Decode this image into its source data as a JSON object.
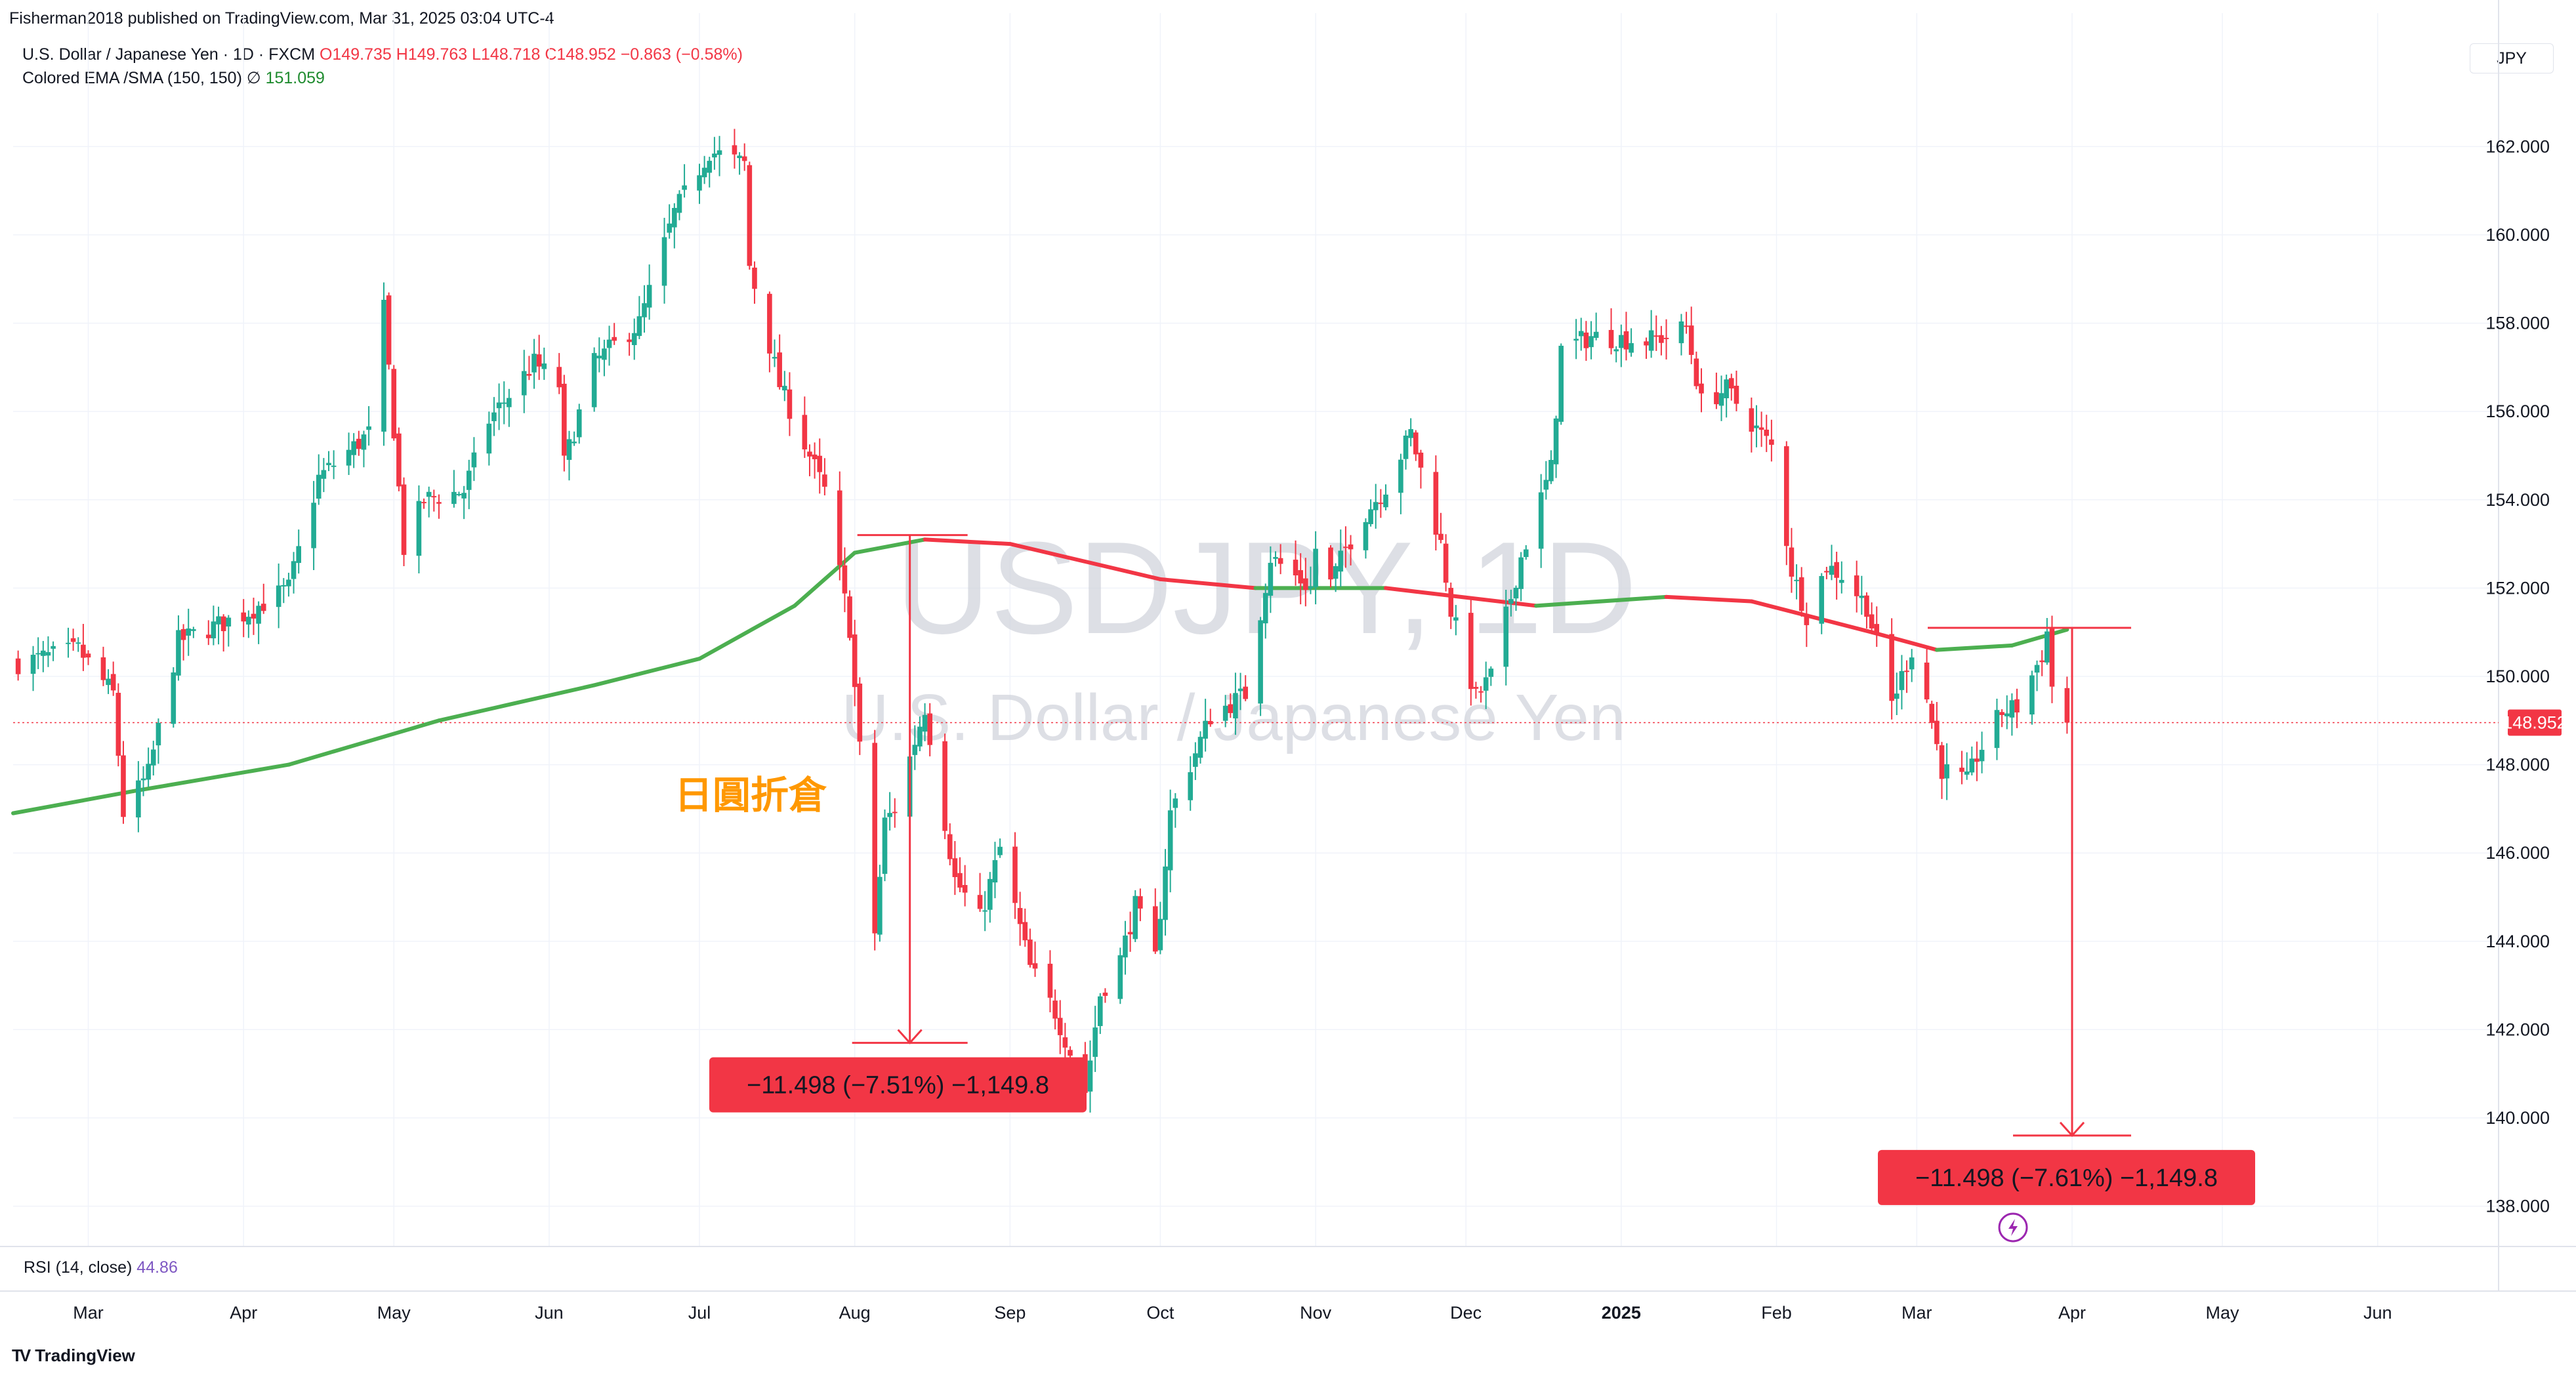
{
  "header": {
    "publisher_line": "Fisherman2018 published on TradingView.com, Mar 31, 2025 03:04 UTC-4",
    "symbol_desc": "U.S. Dollar / Japanese Yen · 1D · FXCM",
    "ohlc": "O149.735  H149.763  L148.718  C148.952  −0.863 (−0.58%)",
    "indicator_name": "Colored EMA /SMA (150, 150)",
    "indicator_icon": "∅",
    "indicator_value": "151.059",
    "currency": "JPY"
  },
  "watermark": {
    "symbol": "USDJPY, 1D",
    "name": "U.S. Dollar / Japanese Yen"
  },
  "annotations": {
    "chinese_text": "日圓折倉",
    "measure1": "−11.498 (−7.51%) −1,149.8",
    "measure2": "−11.498 (−7.61%) −1,149.8"
  },
  "rsi": {
    "label": "RSI (14, close)",
    "value": "44.86"
  },
  "footer": {
    "logo_text": "TradingView",
    "logo_mark": "TV"
  },
  "colors": {
    "up": "#22ab94",
    "down": "#f23645",
    "ma_up": "#4caf50",
    "ma_down": "#f23645",
    "orange": "#ff9800",
    "price_line": "#f23645"
  },
  "chart_data": {
    "type": "candlestick",
    "symbol": "USDJPY",
    "timeframe": "1D",
    "last_price": "148.952",
    "y_range": [
      137.3,
      162.9
    ],
    "y_ticks": [
      "162.000",
      "160.000",
      "158.000",
      "156.000",
      "154.000",
      "152.000",
      "150.000",
      "148.000",
      "146.000",
      "144.000",
      "142.000",
      "140.000",
      "138.000"
    ],
    "x_ticks": [
      {
        "label": "Mar",
        "bold": false
      },
      {
        "label": "Apr",
        "bold": false
      },
      {
        "label": "May",
        "bold": false
      },
      {
        "label": "Jun",
        "bold": false
      },
      {
        "label": "Jul",
        "bold": false
      },
      {
        "label": "Aug",
        "bold": false
      },
      {
        "label": "Sep",
        "bold": false
      },
      {
        "label": "Oct",
        "bold": false
      },
      {
        "label": "Nov",
        "bold": false
      },
      {
        "label": "Dec",
        "bold": false
      },
      {
        "label": "2025",
        "bold": true
      },
      {
        "label": "Feb",
        "bold": false
      },
      {
        "label": "Mar",
        "bold": false
      },
      {
        "label": "Apr",
        "bold": false
      },
      {
        "label": "May",
        "bold": false
      },
      {
        "label": "Jun",
        "bold": false
      }
    ],
    "anchors": [
      [
        "2024-02-16",
        150.3
      ],
      [
        "2024-02-28",
        150.6
      ],
      [
        "2024-03-06",
        149.6
      ],
      [
        "2024-03-08",
        146.9
      ],
      [
        "2024-03-13",
        147.8
      ],
      [
        "2024-03-19",
        150.8
      ],
      [
        "2024-04-01",
        151.4
      ],
      [
        "2024-04-10",
        152.0
      ],
      [
        "2024-04-16",
        154.5
      ],
      [
        "2024-04-26",
        155.5
      ],
      [
        "2024-04-29",
        158.3
      ],
      [
        "2024-05-03",
        152.9
      ],
      [
        "2024-05-07",
        154.0
      ],
      [
        "2024-05-15",
        154.2
      ],
      [
        "2024-05-20",
        155.8
      ],
      [
        "2024-05-29",
        157.1
      ],
      [
        "2024-06-03",
        156.6
      ],
      [
        "2024-06-04",
        154.8
      ],
      [
        "2024-06-10",
        157.1
      ],
      [
        "2024-06-19",
        158.0
      ],
      [
        "2024-06-26",
        160.5
      ],
      [
        "2024-07-03",
        161.9
      ],
      [
        "2024-07-10",
        161.6
      ],
      [
        "2024-07-11",
        159.3
      ],
      [
        "2024-07-17",
        156.6
      ],
      [
        "2024-07-26",
        154.2
      ],
      [
        "2024-07-31",
        151.1
      ],
      [
        "2024-08-05",
        144.2
      ],
      [
        "2024-08-07",
        146.7
      ],
      [
        "2024-08-09",
        147.0
      ],
      [
        "2024-08-15",
        149.3
      ],
      [
        "2024-08-21",
        145.4
      ],
      [
        "2024-08-26",
        144.5
      ],
      [
        "2024-08-30",
        146.1
      ],
      [
        "2024-09-05",
        143.4
      ],
      [
        "2024-09-10",
        142.4
      ],
      [
        "2024-09-16",
        140.6
      ],
      [
        "2024-09-19",
        142.8
      ],
      [
        "2024-09-23",
        143.6
      ],
      [
        "2024-09-26",
        144.8
      ],
      [
        "2024-09-30",
        143.6
      ],
      [
        "2024-10-03",
        146.9
      ],
      [
        "2024-10-11",
        149.1
      ],
      [
        "2024-10-18",
        149.6
      ],
      [
        "2024-10-23",
        152.7
      ],
      [
        "2024-10-31",
        152.0
      ],
      [
        "2024-11-01",
        152.9
      ],
      [
        "2024-11-04",
        152.1
      ],
      [
        "2024-11-07",
        152.9
      ],
      [
        "2024-11-11",
        153.7
      ],
      [
        "2024-11-15",
        154.3
      ],
      [
        "2024-11-20",
        155.5
      ],
      [
        "2024-11-26",
        153.0
      ],
      [
        "2024-11-28",
        151.5
      ],
      [
        "2024-12-03",
        149.5
      ],
      [
        "2024-12-06",
        150.0
      ],
      [
        "2024-12-12",
        152.7
      ],
      [
        "2024-12-18",
        154.7
      ],
      [
        "2024-12-20",
        157.4
      ],
      [
        "2024-12-26",
        157.7
      ],
      [
        "2025-01-06",
        157.6
      ],
      [
        "2025-01-10",
        157.7
      ],
      [
        "2025-01-14",
        157.9
      ],
      [
        "2025-01-17",
        156.2
      ],
      [
        "2025-01-22",
        156.5
      ],
      [
        "2025-01-28",
        155.6
      ],
      [
        "2025-01-31",
        155.2
      ],
      [
        "2025-02-04",
        152.4
      ],
      [
        "2025-02-07",
        151.4
      ],
      [
        "2025-02-11",
        152.5
      ],
      [
        "2025-02-14",
        152.3
      ],
      [
        "2025-02-19",
        151.6
      ],
      [
        "2025-02-24",
        149.4
      ],
      [
        "2025-02-28",
        150.6
      ],
      [
        "2025-03-03",
        149.5
      ],
      [
        "2025-03-06",
        147.9
      ],
      [
        "2025-03-11",
        147.6
      ],
      [
        "2025-03-13",
        148.2
      ],
      [
        "2025-03-18",
        149.2
      ],
      [
        "2025-03-21",
        149.3
      ],
      [
        "2025-03-26",
        150.5
      ],
      [
        "2025-03-27",
        151.0
      ],
      [
        "2025-03-28",
        149.8
      ],
      [
        "2025-03-31",
        148.952
      ]
    ],
    "ma": [
      [
        "2024-02-15",
        146.9
      ],
      [
        "2024-03-10",
        147.4
      ],
      [
        "2024-04-10",
        148.0
      ],
      [
        "2024-05-10",
        149.0
      ],
      [
        "2024-06-10",
        149.8
      ],
      [
        "2024-07-01",
        150.4
      ],
      [
        "2024-07-20",
        151.6
      ],
      [
        "2024-08-01",
        152.8
      ],
      [
        "2024-08-15",
        153.1
      ],
      [
        "2024-09-01",
        153.0
      ],
      [
        "2024-10-01",
        152.2
      ],
      [
        "2024-10-20",
        152.0
      ],
      [
        "2024-11-15",
        152.0
      ],
      [
        "2024-12-15",
        151.6
      ],
      [
        "2025-01-10",
        151.8
      ],
      [
        "2025-01-27",
        151.7
      ],
      [
        "2025-02-20",
        151.0
      ],
      [
        "2025-03-05",
        150.6
      ],
      [
        "2025-03-20",
        150.7
      ],
      [
        "2025-03-31",
        151.059
      ]
    ],
    "measurements": [
      {
        "from_date": "2024-08-12",
        "from_price": 153.2,
        "to_price": 141.7,
        "label": "−11.498 (−7.51%) −1,149.8"
      },
      {
        "from_date": "2025-04-01",
        "from_price": 151.1,
        "to_price": 139.6,
        "label": "−11.498 (−7.61%) −1,149.8"
      }
    ]
  }
}
